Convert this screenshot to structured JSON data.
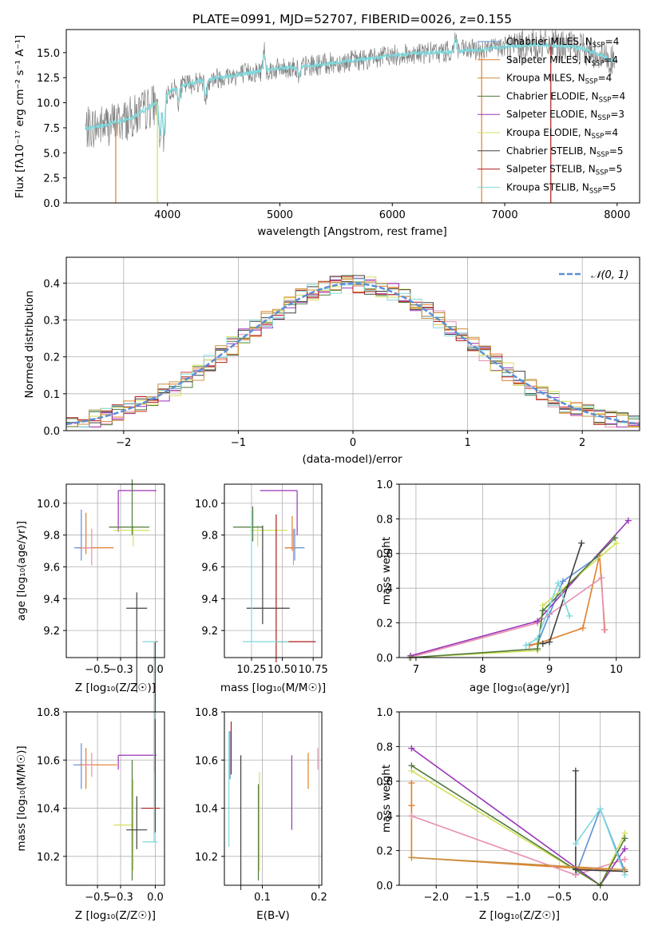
{
  "chart_data": [
    {
      "id": "spectrum",
      "type": "line",
      "title": "PLATE=0991, MJD=52707, FIBERID=0026, z=0.155",
      "xlabel": "wavelength [Angstrom, rest frame]",
      "ylabel": "Flux [fλ10⁻¹⁷ erg cm⁻² s⁻¹ A⁻¹]",
      "xlim": [
        3100,
        8200
      ],
      "ylim": [
        0,
        17.3
      ],
      "xticks": [
        "4000",
        "5000",
        "6000",
        "7000",
        "8000"
      ],
      "yticks": [
        "0.0",
        "2.5",
        "5.0",
        "7.5",
        "10.0",
        "12.5",
        "15.0"
      ],
      "legend_position": "right",
      "legend": [
        {
          "label": "Chabrier MILES, N",
          "sub": "SSP",
          "tail": "=4",
          "color": "#5b8fd6"
        },
        {
          "label": "Salpeter MILES, N",
          "sub": "SSP",
          "tail": "=4",
          "color": "#e07f2a"
        },
        {
          "label": "Kroupa MILES, N",
          "sub": "SSP",
          "tail": "=4",
          "color": "#c89040"
        },
        {
          "label": "Chabrier ELODIE, N",
          "sub": "SSP",
          "tail": "=4",
          "color": "#4f7a3a"
        },
        {
          "label": "Salpeter ELODIE, N",
          "sub": "SSP",
          "tail": "=3",
          "color": "#9a35b8"
        },
        {
          "label": "Kroupa ELODIE, N",
          "sub": "SSP",
          "tail": "=4",
          "color": "#d4e05a"
        },
        {
          "label": "Chabrier STELIB, N",
          "sub": "SSP",
          "tail": "=5",
          "color": "#404040"
        },
        {
          "label": "Salpeter STELIB, N",
          "sub": "SSP",
          "tail": "=5",
          "color": "#b01a1a"
        },
        {
          "label": "Kroupa STELIB, N",
          "sub": "SSP",
          "tail": "=5",
          "color": "#7fd8dc"
        }
      ],
      "spectrum_data": {
        "color": "#808080"
      },
      "model_color": "#7fd8dc",
      "continuum": [
        [
          3270,
          7.4
        ],
        [
          3450,
          7.8
        ],
        [
          3600,
          8.2
        ],
        [
          3700,
          8.6
        ],
        [
          3800,
          9.3
        ],
        [
          3900,
          10.0
        ],
        [
          3970,
          10.8
        ],
        [
          4100,
          11.6
        ],
        [
          4300,
          12.2
        ],
        [
          4500,
          12.6
        ],
        [
          4800,
          13.1
        ],
        [
          5000,
          13.4
        ],
        [
          5200,
          13.6
        ],
        [
          5500,
          14.0
        ],
        [
          5800,
          14.4
        ],
        [
          6000,
          14.7
        ],
        [
          6200,
          14.9
        ],
        [
          6500,
          15.1
        ],
        [
          6800,
          15.3
        ],
        [
          7000,
          15.6
        ],
        [
          7300,
          15.8
        ],
        [
          7600,
          15.6
        ],
        [
          7800,
          15.0
        ],
        [
          7980,
          14.1
        ]
      ]
    },
    {
      "id": "residuals",
      "type": "step",
      "xlabel": "(data-model)/error",
      "ylabel": "Normed distribution",
      "xlim": [
        -2.5,
        2.5
      ],
      "ylim": [
        0,
        0.47
      ],
      "xticks": [
        "−2",
        "−1",
        "0",
        "1",
        "2"
      ],
      "yticks": [
        "0.0",
        "0.1",
        "0.2",
        "0.3",
        "0.4"
      ],
      "grid": true,
      "legend_position": "top-right",
      "gauss_label": "𝒩(0, 1)",
      "gauss_color": "#5b8fd6",
      "colors": [
        "#e07f2a",
        "#e98fb0",
        "#4f7a3a",
        "#9a35b8",
        "#d4e05a",
        "#404040",
        "#b01a1a",
        "#7fd8dc",
        "#c89040"
      ]
    },
    {
      "id": "age_vs_Z",
      "type": "errorbar",
      "xlabel": "Z [log₁₀(Z/Z☉)]",
      "ylabel": "age  [log₁₀(age/yr)]",
      "xlim": [
        -0.77,
        0.08
      ],
      "ylim": [
        9.03,
        10.12
      ],
      "xticks": [
        "−0.5",
        "−0.3",
        "0.0"
      ],
      "yticks": [
        "9.2",
        "9.4",
        "9.6",
        "9.8",
        "10.0"
      ],
      "grid": true,
      "bars": [
        {
          "x": -0.64,
          "y": 9.72,
          "xerr": [
            0.06,
            0.06
          ],
          "yerr": [
            0.08,
            0.24
          ],
          "color": "#5b8fd6"
        },
        {
          "x": -0.6,
          "y": 9.72,
          "xerr": [
            0.06,
            0.24
          ],
          "yerr": [
            0.04,
            0.22
          ],
          "color": "#e07f2a"
        },
        {
          "x": -0.55,
          "y": 9.72,
          "xerr": [
            0.09,
            0.0
          ],
          "yerr": [
            0.11,
            0.12
          ],
          "color": "#e98fb0"
        },
        {
          "x": -0.32,
          "y": 10.08,
          "xerr": [
            0.0,
            0.33
          ],
          "yerr": [
            0.26,
            0.0
          ],
          "color": "#9a35b8"
        },
        {
          "x": -0.19,
          "y": 9.83,
          "xerr": [
            0.17,
            0.14
          ],
          "yerr": [
            0.1,
            0.03
          ],
          "color": "#d4e05a"
        },
        {
          "x": -0.2,
          "y": 9.85,
          "xerr": [
            0.2,
            0.15
          ],
          "yerr": [
            0.05,
            0.3
          ],
          "color": "#4f7a3a"
        },
        {
          "x": -0.16,
          "y": 9.34,
          "xerr": [
            0.09,
            0.09
          ],
          "yerr": [
            0.53,
            0.1
          ],
          "color": "#404040"
        },
        {
          "x": 0.0,
          "y": 9.13,
          "xerr": [
            0.0,
            0.02
          ],
          "yerr": [
            0.82,
            0.0
          ],
          "color": "#b01a1a"
        },
        {
          "x": -0.01,
          "y": 9.13,
          "xerr": [
            0.1,
            0.02
          ],
          "yerr": [
            0.82,
            0.0
          ],
          "color": "#7fd8dc"
        }
      ]
    },
    {
      "id": "age_vs_mass",
      "type": "errorbar",
      "xlabel": "mass [log₁₀(M/M☉)]",
      "ylabel": "",
      "xlim": [
        10.03,
        10.82
      ],
      "ylim": [
        9.03,
        10.12
      ],
      "xticks": [
        "10.25",
        "10.50",
        "10.75"
      ],
      "yticks": [
        "9.2",
        "9.4",
        "9.6",
        "9.8",
        "10.0"
      ],
      "grid": true,
      "bars": [
        {
          "x": 10.6,
          "y": 9.72,
          "xerr": [
            0.08,
            0.08
          ],
          "yerr": [
            0.08,
            0.12
          ],
          "color": "#5b8fd6"
        },
        {
          "x": 10.58,
          "y": 9.72,
          "xerr": [
            0.06,
            0.03
          ],
          "yerr": [
            0.02,
            0.2
          ],
          "color": "#e07f2a"
        },
        {
          "x": 10.59,
          "y": 9.72,
          "xerr": [
            0.0,
            0.0
          ],
          "yerr": [
            0.11,
            0.12
          ],
          "color": "#e98fb0"
        },
        {
          "x": 10.62,
          "y": 10.08,
          "xerr": [
            0.3,
            0.0
          ],
          "yerr": [
            0.28,
            0.0
          ],
          "color": "#9a35b8"
        },
        {
          "x": 10.3,
          "y": 9.83,
          "xerr": [
            0.06,
            0.24
          ],
          "yerr": [
            0.1,
            0.03
          ],
          "color": "#d4e05a"
        },
        {
          "x": 10.26,
          "y": 9.85,
          "xerr": [
            0.16,
            0.08
          ],
          "yerr": [
            0.09,
            0.13
          ],
          "color": "#4f7a3a"
        },
        {
          "x": 10.34,
          "y": 9.34,
          "xerr": [
            0.13,
            0.22
          ],
          "yerr": [
            0.1,
            0.52
          ],
          "color": "#404040"
        },
        {
          "x": 10.45,
          "y": 9.13,
          "xerr": [
            0.0,
            0.32
          ],
          "yerr": [
            0.13,
            0.8
          ],
          "color": "#b01a1a"
        },
        {
          "x": 10.25,
          "y": 9.13,
          "xerr": [
            0.07,
            0.3
          ],
          "yerr": [
            0.0,
            0.82
          ],
          "color": "#7fd8dc"
        }
      ]
    },
    {
      "id": "weight_vs_age",
      "type": "line",
      "xlabel": "age  [log₁₀(age/yr)]",
      "ylabel": "mass weight",
      "xlim": [
        6.75,
        10.35
      ],
      "ylim": [
        0,
        1.0
      ],
      "xticks": [
        "7",
        "8",
        "9",
        "10"
      ],
      "yticks": [
        "0.0",
        "0.2",
        "0.4",
        "0.6",
        "0.8",
        "1.0"
      ],
      "grid": true,
      "series": [
        {
          "color": "#5b8fd6",
          "x": [
            8.65,
            8.82,
            9.0,
            9.2,
            9.72
          ],
          "y": [
            0.07,
            0.08,
            0.25,
            0.44,
            0.58
          ]
        },
        {
          "color": "#e07f2a",
          "x": [
            8.7,
            8.82,
            9.5,
            9.75,
            9.83
          ],
          "y": [
            0.07,
            0.08,
            0.17,
            0.59,
            0.16
          ]
        },
        {
          "color": "#e98fb0",
          "x": [
            6.9,
            8.82,
            9.78,
            9.82
          ],
          "y": [
            0.0,
            0.2,
            0.46,
            0.16
          ]
        },
        {
          "color": "#9a35b8",
          "x": [
            6.92,
            8.82,
            10.18
          ],
          "y": [
            0.01,
            0.21,
            0.79
          ]
        },
        {
          "color": "#d4e05a",
          "x": [
            6.92,
            8.82,
            8.9,
            10.0
          ],
          "y": [
            0.0,
            0.04,
            0.3,
            0.66
          ]
        },
        {
          "color": "#4f7a3a",
          "x": [
            6.92,
            8.82,
            8.9,
            9.98
          ],
          "y": [
            0.0,
            0.05,
            0.27,
            0.69
          ]
        },
        {
          "color": "#404040",
          "x": [
            8.9,
            9.0,
            9.48
          ],
          "y": [
            0.08,
            0.09,
            0.66
          ]
        },
        {
          "color": "#7fd8dc",
          "x": [
            8.65,
            8.82,
            9.13,
            9.3
          ],
          "y": [
            0.07,
            0.11,
            0.43,
            0.24
          ]
        }
      ]
    },
    {
      "id": "mass_vs_Z",
      "type": "errorbar",
      "xlabel": "Z [log₁₀(Z/Z☉)]",
      "ylabel": "mass [log₁₀(M/M☉)]",
      "xlim": [
        -0.77,
        0.08
      ],
      "ylim": [
        10.08,
        10.8
      ],
      "xticks": [
        "−0.5",
        "−0.3",
        "0.0"
      ],
      "yticks": [
        "10.2",
        "10.4",
        "10.6",
        "10.8"
      ],
      "grid": true,
      "bars": [
        {
          "x": -0.64,
          "y": 10.58,
          "xerr": [
            0.07,
            0.07
          ],
          "yerr": [
            0.1,
            0.09
          ],
          "color": "#5b8fd6"
        },
        {
          "x": -0.6,
          "y": 10.58,
          "xerr": [
            0.06,
            0.27
          ],
          "yerr": [
            0.1,
            0.07
          ],
          "color": "#e07f2a"
        },
        {
          "x": -0.55,
          "y": 10.58,
          "xerr": [
            0.09,
            0.0
          ],
          "yerr": [
            0.05,
            0.05
          ],
          "color": "#e98fb0"
        },
        {
          "x": -0.32,
          "y": 10.62,
          "xerr": [
            0.0,
            0.33
          ],
          "yerr": [
            0.06,
            0.0
          ],
          "color": "#9a35b8"
        },
        {
          "x": -0.19,
          "y": 10.33,
          "xerr": [
            0.17,
            0.0
          ],
          "yerr": [
            0.19,
            0.19
          ],
          "color": "#d4e05a"
        },
        {
          "x": -0.2,
          "y": 10.33,
          "xerr": [
            0.0,
            0.0
          ],
          "yerr": [
            0.23,
            0.27
          ],
          "color": "#4f7a3a"
        },
        {
          "x": -0.16,
          "y": 10.31,
          "xerr": [
            0.09,
            0.09
          ],
          "yerr": [
            0.08,
            0.14
          ],
          "color": "#404040"
        },
        {
          "x": 0.0,
          "y": 10.4,
          "xerr": [
            0.12,
            0.04
          ],
          "yerr": [
            0.1,
            0.37
          ],
          "color": "#b01a1a"
        },
        {
          "x": -0.01,
          "y": 10.26,
          "xerr": [
            0.1,
            0.03
          ],
          "yerr": [
            0.0,
            0.44
          ],
          "color": "#7fd8dc"
        }
      ]
    },
    {
      "id": "mass_vs_ebv",
      "type": "errorbar",
      "xlabel": "E(B-V)",
      "ylabel": "",
      "xlim": [
        0.033,
        0.205
      ],
      "ylim": [
        10.08,
        10.8
      ],
      "xticks": [
        "0.1",
        "0.2"
      ],
      "yticks": [
        "10.2",
        "10.4",
        "10.6",
        "10.8"
      ],
      "grid": true,
      "bars": [
        {
          "x": 0.043,
          "y": 10.6,
          "xerr": [
            0,
            0
          ],
          "yerr": [
            0.08,
            0.12
          ],
          "color": "#5b8fd6"
        },
        {
          "x": 0.181,
          "y": 10.58,
          "xerr": [
            0,
            0
          ],
          "yerr": [
            0.1,
            0.05
          ],
          "color": "#e07f2a"
        },
        {
          "x": 0.198,
          "y": 10.6,
          "xerr": [
            0,
            0
          ],
          "yerr": [
            0.04,
            0.05
          ],
          "color": "#e98fb0"
        },
        {
          "x": 0.152,
          "y": 10.48,
          "xerr": [
            0,
            0
          ],
          "yerr": [
            0.17,
            0.14
          ],
          "color": "#9a35b8"
        },
        {
          "x": 0.095,
          "y": 10.45,
          "xerr": [
            0,
            0
          ],
          "yerr": [
            0.31,
            0.1
          ],
          "color": "#d4e05a"
        },
        {
          "x": 0.093,
          "y": 10.3,
          "xerr": [
            0,
            0
          ],
          "yerr": [
            0.2,
            0.2
          ],
          "color": "#4f7a3a"
        },
        {
          "x": 0.062,
          "y": 10.45,
          "xerr": [
            0,
            0
          ],
          "yerr": [
            0.39,
            0.17
          ],
          "color": "#404040"
        },
        {
          "x": 0.045,
          "y": 10.6,
          "xerr": [
            0,
            0
          ],
          "yerr": [
            0.06,
            0.16
          ],
          "color": "#b01a1a"
        },
        {
          "x": 0.041,
          "y": 10.5,
          "xerr": [
            0,
            0
          ],
          "yerr": [
            0.26,
            0.22
          ],
          "color": "#7fd8dc"
        }
      ]
    },
    {
      "id": "weight_vs_Z",
      "type": "line",
      "xlabel": "Z [log₁₀(Z/Z☉)]",
      "ylabel": "mass weight",
      "xlim": [
        -2.45,
        0.48
      ],
      "ylim": [
        0,
        1.0
      ],
      "xticks": [
        "−2.0",
        "−1.5",
        "−1.0",
        "−0.5",
        "0.0"
      ],
      "yticks": [
        "0.0",
        "0.2",
        "0.4",
        "0.6",
        "0.8",
        "1.0"
      ],
      "grid": true,
      "series": [
        {
          "color": "#5b8fd6",
          "x": [
            -0.3,
            0.0,
            0.3
          ],
          "y": [
            0.06,
            0.44,
            0.08
          ]
        },
        {
          "color": "#e07f2a",
          "x": [
            -2.3,
            -2.3,
            -2.3,
            0.3
          ],
          "y": [
            0.59,
            0.46,
            0.16,
            0.08
          ]
        },
        {
          "color": "#e98fb0",
          "x": [
            -2.3,
            -0.3,
            0.3
          ],
          "y": [
            0.4,
            0.06,
            0.15
          ]
        },
        {
          "color": "#9a35b8",
          "x": [
            -2.3,
            0.0,
            0.3
          ],
          "y": [
            0.79,
            0.0,
            0.21
          ]
        },
        {
          "color": "#d4e05a",
          "x": [
            -2.3,
            0.0,
            0.3
          ],
          "y": [
            0.66,
            0.0,
            0.3
          ]
        },
        {
          "color": "#4f7a3a",
          "x": [
            -2.3,
            0.0,
            0.3
          ],
          "y": [
            0.69,
            0.0,
            0.27
          ]
        },
        {
          "color": "#404040",
          "x": [
            -0.3,
            -0.3,
            0.3
          ],
          "y": [
            0.66,
            0.09,
            0.08
          ]
        },
        {
          "color": "#7fd8dc",
          "x": [
            -0.3,
            0.0,
            0.3
          ],
          "y": [
            0.24,
            0.44,
            0.06
          ]
        },
        {
          "color": "#c89040",
          "x": [
            -2.3,
            0.3
          ],
          "y": [
            0.16,
            0.09
          ]
        }
      ]
    }
  ]
}
